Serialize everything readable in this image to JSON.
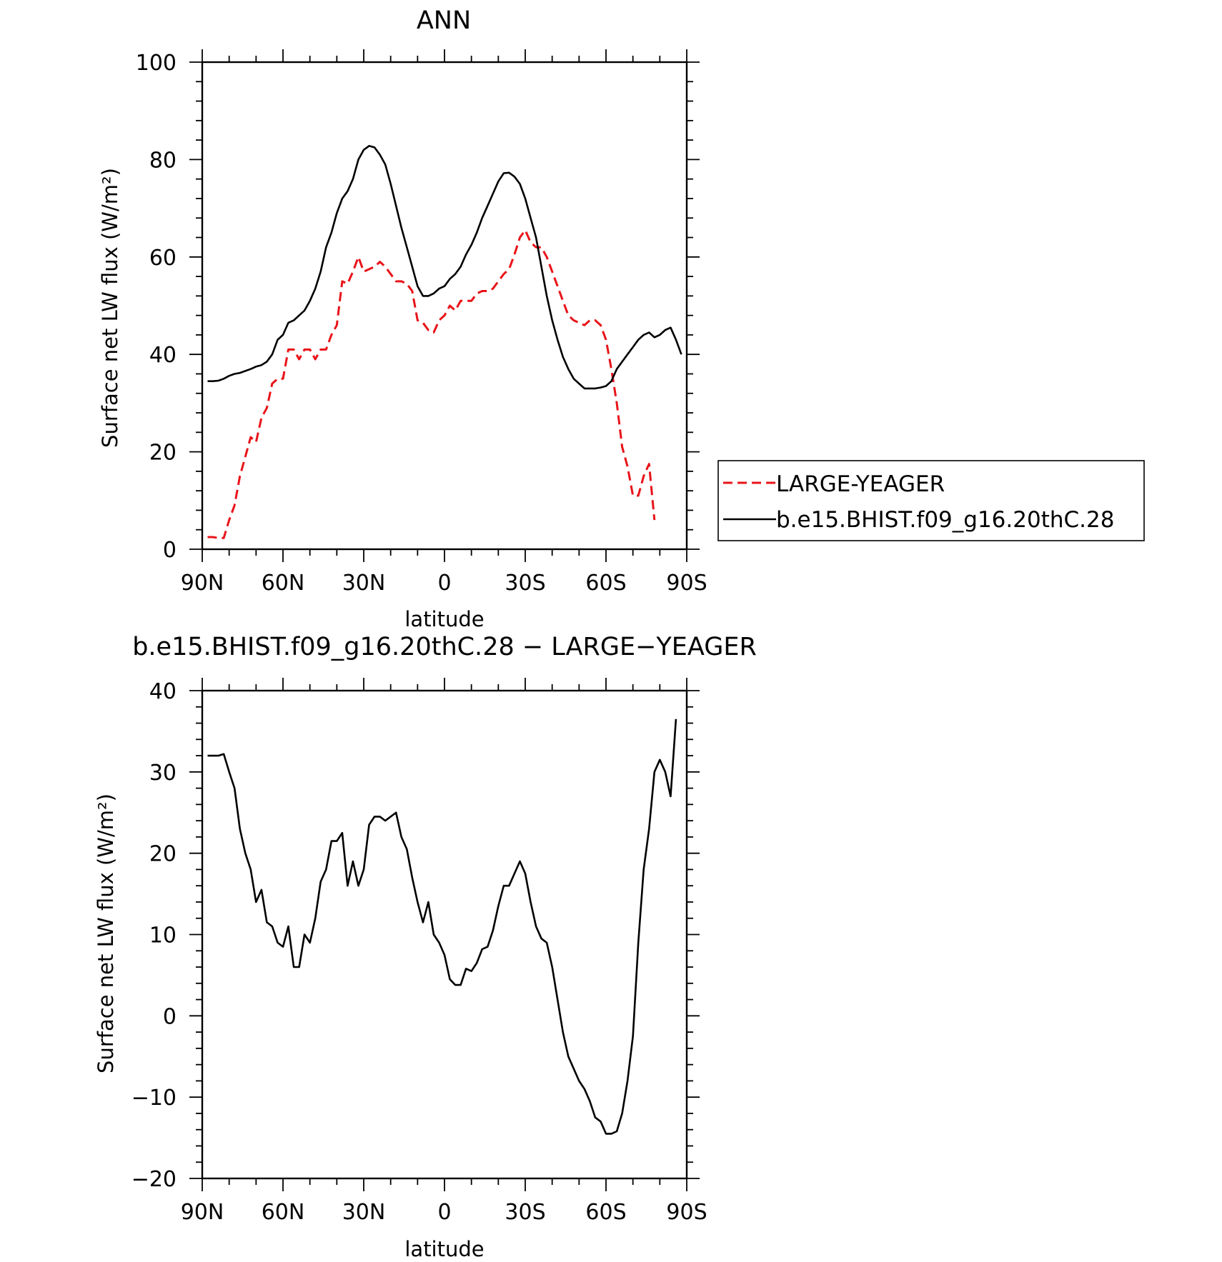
{
  "chart_data": [
    {
      "type": "line",
      "title": "ANN",
      "xlabel": "latitude",
      "ylabel": "Surface net LW flux (W/m²)",
      "xlim": [
        90,
        -90
      ],
      "ylim": [
        0,
        100
      ],
      "xticks": [
        90,
        60,
        30,
        0,
        -30,
        -60,
        -90
      ],
      "xtick_labels": [
        "90N",
        "60N",
        "30N",
        "0",
        "30S",
        "60S",
        "90S"
      ],
      "yticks": [
        0,
        20,
        40,
        60,
        80,
        100
      ],
      "ytick_labels": [
        "0",
        "20",
        "40",
        "60",
        "80",
        "100"
      ],
      "grid": false,
      "legend_position": "right",
      "series": [
        {
          "name": "LARGE-YEAGER",
          "color": "#e8141a",
          "dash": "dashed",
          "points": [
            [
              88,
              2.5
            ],
            [
              86,
              2.5
            ],
            [
              84,
              2.3
            ],
            [
              82,
              2.3
            ],
            [
              80,
              6
            ],
            [
              78,
              9
            ],
            [
              76,
              15
            ],
            [
              74,
              19
            ],
            [
              72,
              23
            ],
            [
              70,
              22
            ],
            [
              68,
              27
            ],
            [
              66,
              29
            ],
            [
              64,
              34
            ],
            [
              62,
              35
            ],
            [
              60,
              35
            ],
            [
              58,
              41
            ],
            [
              56,
              41
            ],
            [
              54,
              39
            ],
            [
              52,
              41
            ],
            [
              50,
              41
            ],
            [
              48,
              39
            ],
            [
              46,
              41
            ],
            [
              44,
              41
            ],
            [
              42,
              44
            ],
            [
              40,
              46
            ],
            [
              38,
              55
            ],
            [
              36,
              54.5
            ],
            [
              34,
              57
            ],
            [
              32,
              60
            ],
            [
              30,
              57
            ],
            [
              28,
              57.5
            ],
            [
              26,
              58
            ],
            [
              24,
              59
            ],
            [
              22,
              58
            ],
            [
              20,
              56.5
            ],
            [
              18,
              55
            ],
            [
              16,
              55
            ],
            [
              14,
              54.5
            ],
            [
              12,
              53
            ],
            [
              10,
              47
            ],
            [
              8,
              46.5
            ],
            [
              6,
              45
            ],
            [
              4,
              44.5
            ],
            [
              2,
              47
            ],
            [
              0,
              48
            ],
            [
              -2,
              50
            ],
            [
              -4,
              49
            ],
            [
              -6,
              51
            ],
            [
              -8,
              51
            ],
            [
              -10,
              51
            ],
            [
              -12,
              52.5
            ],
            [
              -14,
              53
            ],
            [
              -16,
              53
            ],
            [
              -18,
              53.5
            ],
            [
              -20,
              55
            ],
            [
              -22,
              56.5
            ],
            [
              -24,
              57.5
            ],
            [
              -26,
              60.5
            ],
            [
              -28,
              64
            ],
            [
              -30,
              65.5
            ],
            [
              -32,
              63
            ],
            [
              -34,
              62
            ],
            [
              -36,
              62
            ],
            [
              -38,
              60
            ],
            [
              -40,
              57
            ],
            [
              -42,
              54
            ],
            [
              -44,
              51
            ],
            [
              -46,
              48
            ],
            [
              -48,
              47
            ],
            [
              -50,
              46.5
            ],
            [
              -52,
              46
            ],
            [
              -54,
              47
            ],
            [
              -56,
              47
            ],
            [
              -58,
              46
            ],
            [
              -60,
              43
            ],
            [
              -62,
              37
            ],
            [
              -64,
              30
            ],
            [
              -66,
              21
            ],
            [
              -68,
              17
            ],
            [
              -70,
              11
            ],
            [
              -72,
              11
            ],
            [
              -74,
              15
            ],
            [
              -76,
              17.5
            ],
            [
              -78,
              6
            ]
          ]
        },
        {
          "name": "b.e15.BHIST.f09_g16.20thC.28",
          "color": "#000000",
          "dash": "solid",
          "points": [
            [
              88,
              34.5
            ],
            [
              86,
              34.5
            ],
            [
              84,
              34.6
            ],
            [
              82,
              35
            ],
            [
              80,
              35.6
            ],
            [
              78,
              36
            ],
            [
              76,
              36.2
            ],
            [
              74,
              36.6
            ],
            [
              72,
              37
            ],
            [
              70,
              37.5
            ],
            [
              68,
              37.8
            ],
            [
              66,
              38.5
            ],
            [
              64,
              40
            ],
            [
              62,
              43
            ],
            [
              60,
              44
            ],
            [
              58,
              46.5
            ],
            [
              56,
              47
            ],
            [
              54,
              48
            ],
            [
              52,
              49
            ],
            [
              50,
              51
            ],
            [
              48,
              53.5
            ],
            [
              46,
              57
            ],
            [
              44,
              62
            ],
            [
              42,
              65
            ],
            [
              40,
              69
            ],
            [
              38,
              72
            ],
            [
              36,
              73.5
            ],
            [
              34,
              76
            ],
            [
              32,
              80
            ],
            [
              30,
              82
            ],
            [
              28,
              82.8
            ],
            [
              26,
              82.5
            ],
            [
              24,
              81
            ],
            [
              22,
              79
            ],
            [
              20,
              75
            ],
            [
              18,
              70.5
            ],
            [
              16,
              66
            ],
            [
              14,
              62
            ],
            [
              12,
              58
            ],
            [
              10,
              54
            ],
            [
              8,
              52
            ],
            [
              6,
              52
            ],
            [
              4,
              52.5
            ],
            [
              2,
              53.5
            ],
            [
              0,
              54
            ],
            [
              -2,
              55.5
            ],
            [
              -4,
              56.5
            ],
            [
              -6,
              58
            ],
            [
              -8,
              60.5
            ],
            [
              -10,
              62.5
            ],
            [
              -12,
              65
            ],
            [
              -14,
              68
            ],
            [
              -16,
              70.5
            ],
            [
              -18,
              73
            ],
            [
              -20,
              75.5
            ],
            [
              -22,
              77.2
            ],
            [
              -24,
              77.3
            ],
            [
              -26,
              76.5
            ],
            [
              -28,
              75
            ],
            [
              -30,
              72
            ],
            [
              -32,
              68
            ],
            [
              -34,
              64
            ],
            [
              -36,
              58
            ],
            [
              -38,
              52
            ],
            [
              -40,
              47
            ],
            [
              -42,
              43
            ],
            [
              -44,
              39.5
            ],
            [
              -46,
              37
            ],
            [
              -48,
              35
            ],
            [
              -50,
              34
            ],
            [
              -52,
              33
            ],
            [
              -54,
              33
            ],
            [
              -56,
              33
            ],
            [
              -58,
              33.2
            ],
            [
              -60,
              33.5
            ],
            [
              -62,
              34.5
            ],
            [
              -64,
              37
            ],
            [
              -66,
              38.5
            ],
            [
              -68,
              40
            ],
            [
              -70,
              41.5
            ],
            [
              -72,
              43
            ],
            [
              -74,
              44
            ],
            [
              -76,
              44.5
            ],
            [
              -78,
              43.5
            ],
            [
              -80,
              44
            ],
            [
              -82,
              45
            ],
            [
              -84,
              45.5
            ],
            [
              -86,
              43
            ],
            [
              -88,
              40
            ]
          ]
        }
      ]
    },
    {
      "type": "line",
      "title": "b.e15.BHIST.f09_g16.20thC.28 − LARGE−YEAGER",
      "xlabel": "latitude",
      "ylabel": "Surface net LW flux (W/m²)",
      "xlim": [
        90,
        -90
      ],
      "ylim": [
        -20,
        40
      ],
      "xticks": [
        90,
        60,
        30,
        0,
        -30,
        -60,
        -90
      ],
      "xtick_labels": [
        "90N",
        "60N",
        "30N",
        "0",
        "30S",
        "60S",
        "90S"
      ],
      "yticks": [
        -20,
        -10,
        0,
        10,
        20,
        30,
        40
      ],
      "ytick_labels": [
        "−20",
        "−10",
        "0",
        "10",
        "20",
        "30",
        "40"
      ],
      "grid": false,
      "series": [
        {
          "color": "#000000",
          "dash": "solid",
          "points": [
            [
              88,
              32
            ],
            [
              86,
              32
            ],
            [
              84,
              32
            ],
            [
              82,
              32.2
            ],
            [
              80,
              30
            ],
            [
              78,
              28
            ],
            [
              76,
              23
            ],
            [
              74,
              20
            ],
            [
              72,
              18
            ],
            [
              70,
              14
            ],
            [
              68,
              15.5
            ],
            [
              66,
              11.5
            ],
            [
              64,
              11
            ],
            [
              62,
              9
            ],
            [
              60,
              8.5
            ],
            [
              58,
              11
            ],
            [
              56,
              6
            ],
            [
              54,
              6
            ],
            [
              52,
              10
            ],
            [
              50,
              9
            ],
            [
              48,
              12
            ],
            [
              46,
              16.5
            ],
            [
              44,
              18
            ],
            [
              42,
              21.5
            ],
            [
              40,
              21.5
            ],
            [
              38,
              22.5
            ],
            [
              36,
              16
            ],
            [
              34,
              19
            ],
            [
              32,
              16
            ],
            [
              30,
              18
            ],
            [
              28,
              23.5
            ],
            [
              26,
              24.5
            ],
            [
              24,
              24.5
            ],
            [
              22,
              24
            ],
            [
              20,
              24.5
            ],
            [
              18,
              25
            ],
            [
              16,
              22
            ],
            [
              14,
              20.5
            ],
            [
              12,
              17
            ],
            [
              10,
              14
            ],
            [
              8,
              11.5
            ],
            [
              6,
              14
            ],
            [
              4,
              10
            ],
            [
              2,
              9
            ],
            [
              0,
              7.5
            ],
            [
              -2,
              4.5
            ],
            [
              -4,
              3.8
            ],
            [
              -6,
              3.8
            ],
            [
              -8,
              5.8
            ],
            [
              -10,
              5.5
            ],
            [
              -12,
              6.5
            ],
            [
              -14,
              8.2
            ],
            [
              -16,
              8.5
            ],
            [
              -18,
              10.5
            ],
            [
              -20,
              13.5
            ],
            [
              -22,
              16
            ],
            [
              -24,
              16
            ],
            [
              -26,
              17.5
            ],
            [
              -28,
              19
            ],
            [
              -30,
              17.5
            ],
            [
              -32,
              14
            ],
            [
              -34,
              11
            ],
            [
              -36,
              9.5
            ],
            [
              -38,
              9
            ],
            [
              -40,
              6
            ],
            [
              -42,
              2
            ],
            [
              -44,
              -2
            ],
            [
              -46,
              -5
            ],
            [
              -48,
              -6.5
            ],
            [
              -50,
              -8
            ],
            [
              -52,
              -9
            ],
            [
              -54,
              -10.5
            ],
            [
              -56,
              -12.5
            ],
            [
              -58,
              -13
            ],
            [
              -60,
              -14.5
            ],
            [
              -62,
              -14.5
            ],
            [
              -64,
              -14.2
            ],
            [
              -66,
              -12
            ],
            [
              -68,
              -8
            ],
            [
              -70,
              -2.5
            ],
            [
              -72,
              9
            ],
            [
              -74,
              18
            ],
            [
              -76,
              23
            ],
            [
              -78,
              30
            ],
            [
              -80,
              31.5
            ],
            [
              -82,
              30
            ],
            [
              -84,
              27
            ],
            [
              -86,
              36.5
            ]
          ]
        }
      ]
    }
  ]
}
